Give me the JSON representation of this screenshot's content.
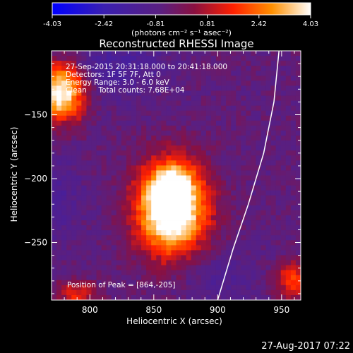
{
  "chart_data": {
    "type": "heatmap",
    "title": "Reconstructed RHESSI Image",
    "xlabel": "Heliocentric X (arcsec)",
    "ylabel": "Heliocentric Y (arcsec)",
    "xlim": [
      770,
      965
    ],
    "ylim": [
      -295,
      -100
    ],
    "xticks": [
      800,
      850,
      900,
      950
    ],
    "yticks": [
      -150,
      -200,
      -250
    ],
    "colorbar": {
      "min": -4.03,
      "max": 4.03,
      "ticks": [
        "-4.03",
        "-2.42",
        "-0.81",
        "0.81",
        "2.42",
        "4.03"
      ],
      "unit_label": "(photons cm⁻² s⁻¹ asec⁻²)",
      "stops": [
        "#0000ff",
        "#3a1fb0",
        "#5a1f80",
        "#8a1040",
        "#ff2000",
        "#ff9000",
        "#ffffff"
      ]
    },
    "annotations": [
      "27-Sep-2015 20:31:18.000 to 20:41:18.000",
      "Detectors: 1F 5F 7F, Att 0",
      "Energy Range: 3.0 - 6.0 keV",
      "Clean     Total counts: 7.68E+04"
    ],
    "peak_label": "Position of Peak = [864,-205]",
    "peak": [
      864,
      -205
    ],
    "limb_curve": [
      [
        948,
        -100
      ],
      [
        944,
        -140
      ],
      [
        936,
        -180
      ],
      [
        924,
        -220
      ],
      [
        912,
        -255
      ],
      [
        900,
        -295
      ]
    ]
  },
  "footer_timestamp": "27-Aug-2017 07:22"
}
